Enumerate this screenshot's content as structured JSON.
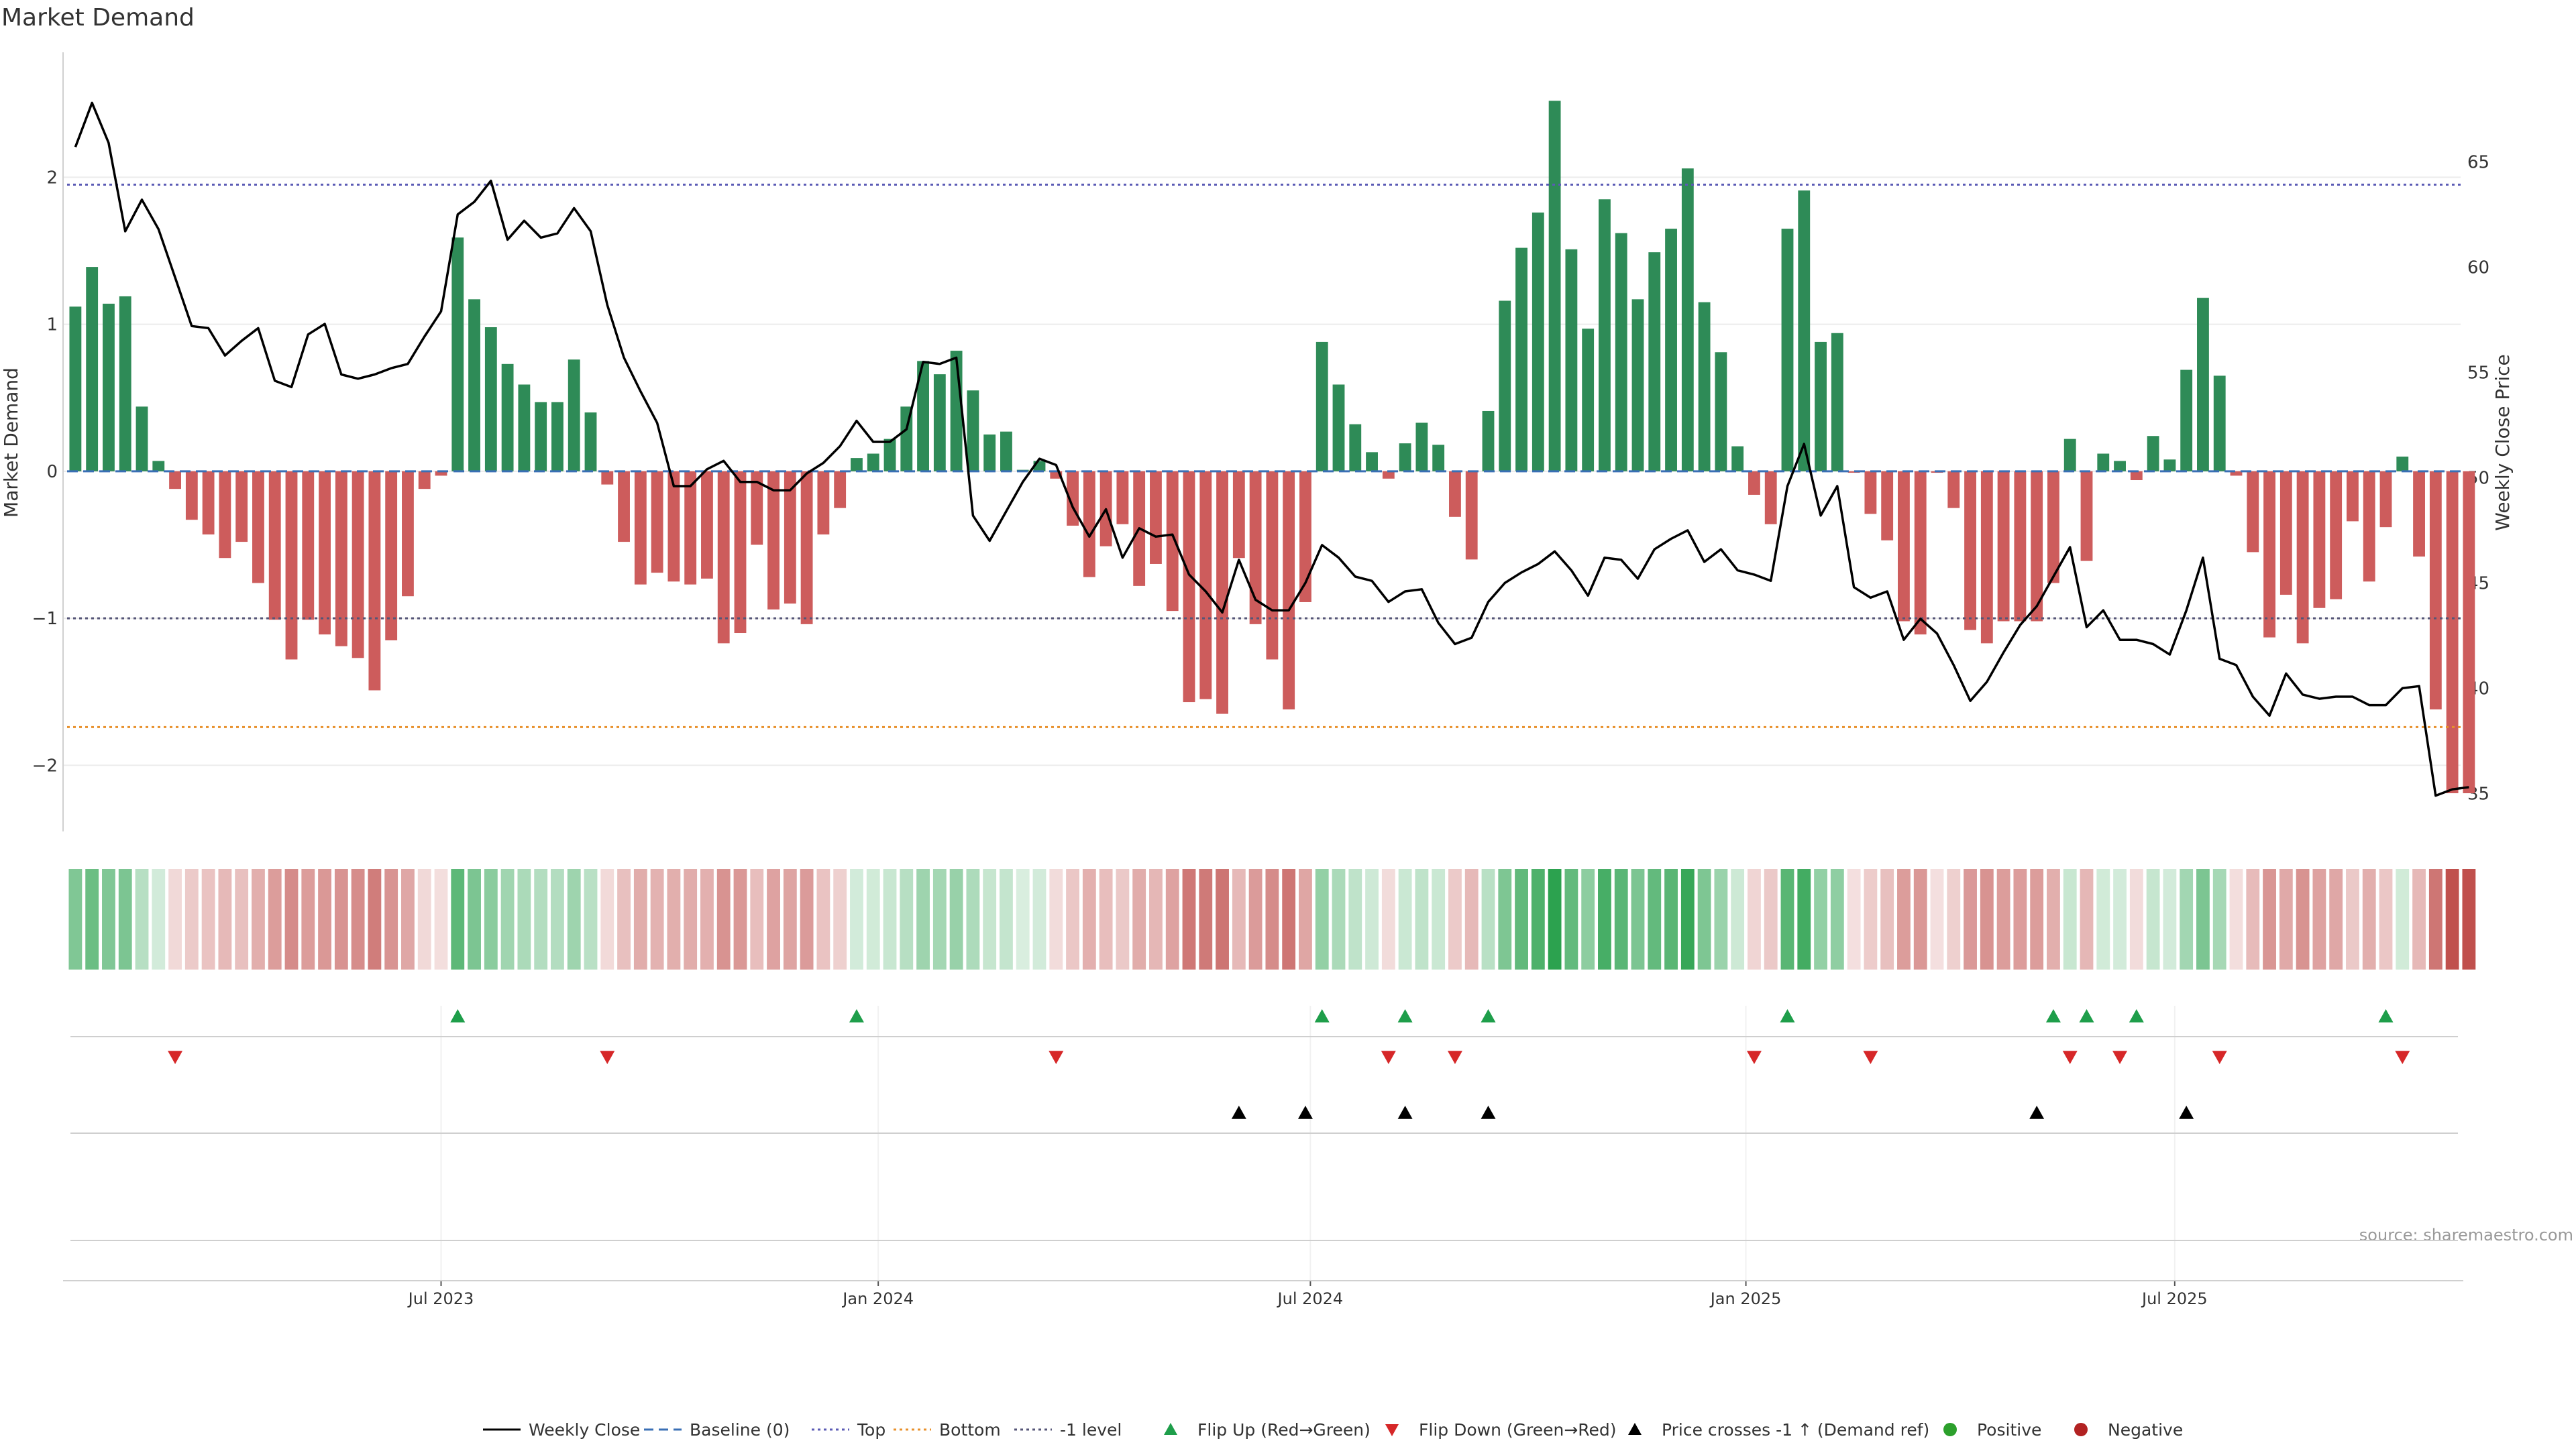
{
  "chart_data": {
    "type": "bar",
    "title": "Market Demand",
    "ylabel": "Market Demand",
    "y2label": "Weekly Close Price",
    "source": "source: sharemaestro.com",
    "ylim": [
      -2.45,
      2.85
    ],
    "y2lim": [
      33.2,
      70.2
    ],
    "yticks": [
      2,
      1,
      0,
      -1,
      -2
    ],
    "yticklabels": [
      "2",
      "1",
      "0",
      "−1",
      "−2"
    ],
    "y2ticks": [
      65,
      60,
      55,
      50,
      45,
      40,
      35
    ],
    "y2ticklabels": [
      "65",
      "60",
      "55",
      "50",
      "45",
      "40",
      "35"
    ],
    "x_start": "2023-01-08",
    "n_weeks": 144,
    "date_ticks": [
      {
        "week": 22.5,
        "label": "Jul 2023"
      },
      {
        "week": 48.8,
        "label": "Jan 2024"
      },
      {
        "week": 74.8,
        "label": "Jul 2024"
      },
      {
        "week": 101.0,
        "label": "Jan 2025"
      },
      {
        "week": 126.8,
        "label": "Jul 2025"
      }
    ],
    "reference_levels": [
      {
        "name": "Top",
        "value": 1.95,
        "color": "#5b5bb5"
      },
      {
        "name": "Bottom",
        "value": -1.74,
        "color": "#e8912c"
      },
      {
        "name": "-1 level",
        "value": -1.0,
        "color": "#555577"
      }
    ],
    "demand": [
      1.12,
      1.39,
      1.14,
      1.19,
      0.44,
      0.07,
      -0.12,
      -0.33,
      -0.43,
      -0.59,
      -0.48,
      -0.76,
      -1.01,
      -1.28,
      -1.01,
      -1.11,
      -1.19,
      -1.27,
      -1.49,
      -1.15,
      -0.85,
      -0.12,
      -0.03,
      1.59,
      1.17,
      0.98,
      0.73,
      0.59,
      0.47,
      0.47,
      0.76,
      0.4,
      -0.09,
      -0.48,
      -0.77,
      -0.69,
      -0.75,
      -0.77,
      -0.73,
      -1.17,
      -1.1,
      -0.5,
      -0.94,
      -0.9,
      -1.04,
      -0.43,
      -0.25,
      0.09,
      0.12,
      0.22,
      0.44,
      0.75,
      0.66,
      0.82,
      0.55,
      0.25,
      0.27,
      0.01,
      0.07,
      -0.05,
      -0.37,
      -0.72,
      -0.51,
      -0.36,
      -0.78,
      -0.63,
      -0.95,
      -1.57,
      -1.55,
      -1.65,
      -0.59,
      -1.04,
      -1.28,
      -1.62,
      -0.89,
      0.88,
      0.59,
      0.32,
      0.13,
      -0.05,
      0.19,
      0.33,
      0.18,
      -0.31,
      -0.6,
      0.41,
      1.16,
      1.52,
      1.76,
      2.52,
      1.51,
      0.97,
      1.85,
      1.62,
      1.17,
      1.49,
      1.65,
      2.06,
      1.15,
      0.81,
      0.17,
      -0.16,
      -0.36,
      1.65,
      1.91,
      0.88,
      0.94,
      -0.01,
      -0.29,
      -0.47,
      -1.02,
      -1.11,
      -0.01,
      -0.25,
      -1.08,
      -1.17,
      -1.02,
      -1.02,
      -1.02,
      -0.76,
      0.22,
      -0.61,
      0.12,
      0.07,
      -0.06,
      0.24,
      0.08,
      0.69,
      1.18,
      0.65,
      -0.03,
      -0.55,
      -1.13,
      -0.84,
      -1.17,
      -0.93,
      -0.87,
      -0.34,
      -0.75,
      -0.38,
      0.1,
      -0.58,
      -1.62,
      -2.19,
      -2.19
    ],
    "price": [
      65.7,
      67.8,
      65.9,
      61.7,
      63.2,
      61.8,
      59.5,
      57.2,
      57.1,
      55.8,
      56.5,
      57.1,
      54.6,
      54.3,
      56.8,
      57.3,
      54.9,
      54.7,
      54.9,
      55.2,
      55.4,
      56.7,
      57.9,
      62.5,
      63.1,
      64.1,
      61.3,
      62.2,
      61.4,
      61.6,
      62.8,
      61.7,
      58.2,
      55.7,
      54.1,
      52.6,
      49.6,
      49.6,
      50.4,
      50.8,
      49.8,
      49.8,
      49.4,
      49.4,
      50.2,
      50.7,
      51.5,
      52.7,
      51.7,
      51.7,
      52.3,
      55.5,
      55.4,
      55.7,
      48.2,
      47.0,
      48.4,
      49.8,
      50.9,
      50.6,
      48.6,
      47.2,
      48.5,
      46.2,
      47.6,
      47.2,
      47.3,
      45.4,
      44.6,
      43.6,
      46.1,
      44.2,
      43.7,
      43.7,
      45.0,
      46.8,
      46.2,
      45.3,
      45.1,
      44.1,
      44.6,
      44.7,
      43.1,
      42.1,
      42.4,
      44.1,
      45.0,
      45.5,
      45.9,
      46.5,
      45.6,
      44.4,
      46.2,
      46.1,
      45.2,
      46.6,
      47.1,
      47.5,
      46.0,
      46.6,
      45.6,
      45.4,
      45.1,
      49.6,
      51.6,
      48.2,
      49.6,
      44.8,
      44.3,
      44.6,
      42.3,
      43.3,
      42.6,
      41.1,
      39.4,
      40.3,
      41.7,
      43.0,
      43.9,
      45.3,
      46.7,
      42.9,
      43.7,
      42.3,
      42.3,
      42.1,
      41.6,
      43.7,
      46.2,
      41.4,
      41.1,
      39.6,
      38.7,
      40.7,
      39.7,
      39.5,
      39.6,
      39.6,
      39.2,
      39.2,
      40.0,
      40.1,
      34.9,
      35.2,
      35.3
    ],
    "flip_up": [
      23,
      47,
      75,
      80,
      85,
      103,
      119,
      121,
      124,
      139
    ],
    "flip_down": [
      6,
      32,
      59,
      79,
      83,
      101,
      108,
      120,
      123,
      129,
      140
    ],
    "price_cross_up": [
      70,
      74,
      80,
      85,
      118,
      127
    ],
    "legend": [
      {
        "label": "Weekly Close",
        "kind": "line",
        "color": "#000000"
      },
      {
        "label": "Baseline (0)",
        "kind": "dash",
        "color": "#3a6fb5"
      },
      {
        "label": "Top",
        "kind": "dot",
        "color": "#5b5bb5"
      },
      {
        "label": "Bottom",
        "kind": "dot",
        "color": "#e8912c"
      },
      {
        "label": "-1 level",
        "kind": "dot",
        "color": "#555577"
      },
      {
        "label": "Flip Up (Red→Green)",
        "kind": "tri-up",
        "color": "#1e9e4a"
      },
      {
        "label": "Flip Down (Green→Red)",
        "kind": "tri-down",
        "color": "#d62728"
      },
      {
        "label": "Price crosses -1 ↑ (Demand ref)",
        "kind": "tri-up",
        "color": "#000000"
      },
      {
        "label": "Positive",
        "kind": "dot-marker",
        "color": "#2ca02c"
      },
      {
        "label": "Negative",
        "kind": "dot-marker",
        "color": "#b22222"
      }
    ],
    "colors": {
      "positive": "#2e8b57",
      "negative": "#cd5c5c",
      "price_line": "#000000",
      "grid": "#ececec",
      "axis": "#d0d0d0"
    }
  }
}
